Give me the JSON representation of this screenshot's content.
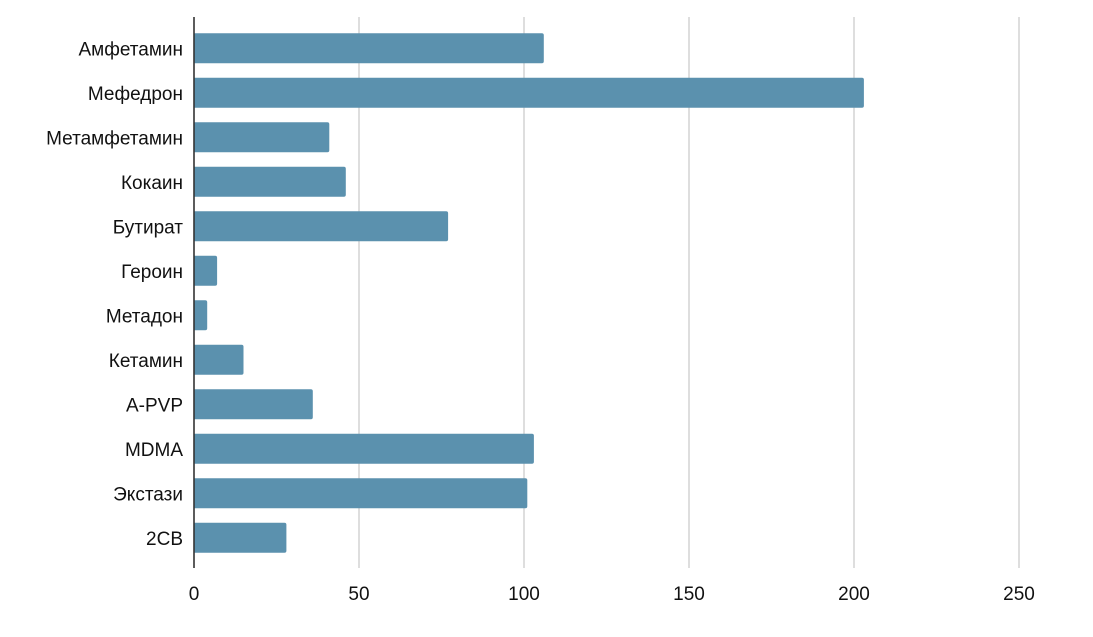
{
  "chart_data": {
    "type": "bar",
    "orientation": "horizontal",
    "categories": [
      "Амфетамин",
      "Мефедрон",
      "Метамфетамин",
      "Кокаин",
      "Бутират",
      "Героин",
      "Метадон",
      "Кетамин",
      "A-PVP",
      "MDMA",
      "Экстази",
      "2CB"
    ],
    "values": [
      106,
      203,
      41,
      46,
      77,
      7,
      4,
      15,
      36,
      103,
      101,
      28
    ],
    "xlim": [
      0,
      250
    ],
    "xticks": [
      0,
      50,
      100,
      150,
      200,
      250
    ],
    "xtick_labels": [
      "0",
      "50",
      "100",
      "150",
      "200",
      "250"
    ],
    "grid": "vertical",
    "title": "",
    "xlabel": "",
    "ylabel": "",
    "colors": {
      "bar": "#5b91ae",
      "grid": "#cccccc",
      "axis": "#333333"
    }
  }
}
